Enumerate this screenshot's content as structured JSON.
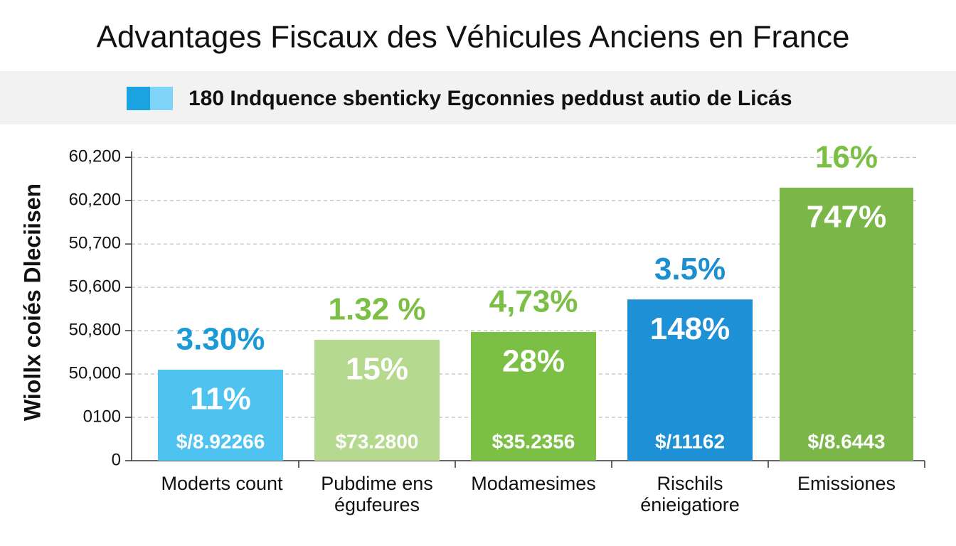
{
  "chart_data": {
    "type": "bar",
    "title": "Advantages Fiscaux des Véhicules Anciens en France",
    "legend_label": "180 Indquence sbenticky Egconnies peddust autio de Licás",
    "y_axis_label": "Wiollx coiés Dleciisen",
    "categories": [
      [
        "Moderts count"
      ],
      [
        "Pubdime ens",
        "égufeures"
      ],
      [
        "Modamesimes"
      ],
      [
        "Rischils",
        "énieigatiore"
      ],
      [
        "Emissiones"
      ]
    ],
    "values": [
      2.1,
      2.79,
      2.97,
      3.72,
      6.3
    ],
    "colors": [
      "#4fc3f0",
      "#b5d98f",
      "#7cbf45",
      "#1e90d6",
      "#7ab648"
    ],
    "top_labels": [
      "3.30%",
      "1.32 %",
      "4,73%",
      "3.5%",
      "16%"
    ],
    "top_label_colors": [
      "#1a9ad9",
      "#7cbf45",
      "#7cbf45",
      "#1b8fd0",
      "#7cbf45"
    ],
    "inner_labels": [
      "11%",
      "15%",
      "28%",
      "148%",
      "747%"
    ],
    "amount_labels": [
      "$/8.92266",
      "$73.2800",
      "$35.2356",
      "$/11162",
      "$/8.6443"
    ],
    "ylim": [
      0,
      7.3
    ],
    "yticks": [
      0,
      {
        "value": 1,
        "label": "0100"
      },
      {
        "value": 2,
        "label": "50,000"
      },
      {
        "value": 3,
        "label": "50,800"
      },
      {
        "value": 4,
        "label": "50,600"
      },
      {
        "value": 5,
        "label": "50,700"
      },
      {
        "value": 6,
        "label": "60,200"
      },
      {
        "value": 7,
        "label": "60,200"
      }
    ],
    "grid": true
  }
}
